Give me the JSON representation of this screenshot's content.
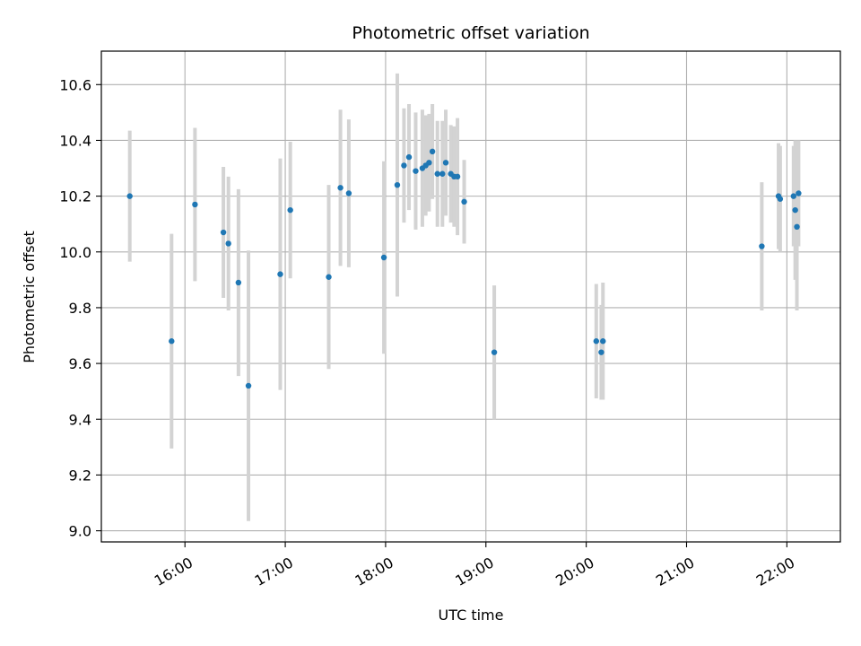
{
  "chart_data": {
    "type": "scatter",
    "title": "Photometric offset variation",
    "xlabel": "UTC time",
    "ylabel": "Photometric offset",
    "x_type": "time",
    "xlim": [
      "15:10",
      "22:32"
    ],
    "ylim": [
      8.96,
      10.72
    ],
    "x_ticks": [
      "16:00",
      "17:00",
      "18:00",
      "19:00",
      "20:00",
      "21:00",
      "22:00"
    ],
    "y_ticks": [
      "9.0",
      "9.2",
      "9.4",
      "9.6",
      "9.8",
      "10.0",
      "10.2",
      "10.4",
      "10.6"
    ],
    "grid": true,
    "legend": "none",
    "colors": {
      "points": "#1f77b4",
      "error_bars": "#d3d3d3",
      "grid": "#b0b0b0",
      "axes": "#000000"
    },
    "series": [
      {
        "points": [
          {
            "x": "15:27",
            "y": 10.2,
            "err": 0.235
          },
          {
            "x": "15:52",
            "y": 9.68,
            "err": 0.385
          },
          {
            "x": "16:06",
            "y": 10.17,
            "err": 0.275
          },
          {
            "x": "16:23",
            "y": 10.07,
            "err": 0.235
          },
          {
            "x": "16:26",
            "y": 10.03,
            "err": 0.24
          },
          {
            "x": "16:32",
            "y": 9.89,
            "err": 0.335
          },
          {
            "x": "16:38",
            "y": 9.52,
            "err": 0.485
          },
          {
            "x": "16:57",
            "y": 9.92,
            "err": 0.415
          },
          {
            "x": "17:03",
            "y": 10.15,
            "err": 0.245
          },
          {
            "x": "17:26",
            "y": 9.91,
            "err": 0.33
          },
          {
            "x": "17:33",
            "y": 10.23,
            "err": 0.28
          },
          {
            "x": "17:38",
            "y": 10.21,
            "err": 0.265
          },
          {
            "x": "17:59",
            "y": 9.98,
            "err": 0.345
          },
          {
            "x": "18:07",
            "y": 10.24,
            "err": 0.4
          },
          {
            "x": "18:11",
            "y": 10.31,
            "err": 0.205
          },
          {
            "x": "18:14",
            "y": 10.34,
            "err": 0.19
          },
          {
            "x": "18:18",
            "y": 10.29,
            "err": 0.21
          },
          {
            "x": "18:22",
            "y": 10.3,
            "err": 0.21
          },
          {
            "x": "18:24",
            "y": 10.31,
            "err": 0.18
          },
          {
            "x": "18:26",
            "y": 10.32,
            "err": 0.175
          },
          {
            "x": "18:28",
            "y": 10.36,
            "err": 0.17
          },
          {
            "x": "18:31",
            "y": 10.28,
            "err": 0.19
          },
          {
            "x": "18:34",
            "y": 10.28,
            "err": 0.19
          },
          {
            "x": "18:36",
            "y": 10.32,
            "err": 0.19
          },
          {
            "x": "18:39",
            "y": 10.28,
            "err": 0.175
          },
          {
            "x": "18:41",
            "y": 10.27,
            "err": 0.18
          },
          {
            "x": "18:43",
            "y": 10.27,
            "err": 0.21
          },
          {
            "x": "18:47",
            "y": 10.18,
            "err": 0.15
          },
          {
            "x": "19:05",
            "y": 9.64,
            "err": 0.24
          },
          {
            "x": "20:06",
            "y": 9.68,
            "err": 0.205
          },
          {
            "x": "20:09",
            "y": 9.64,
            "err": 0.17
          },
          {
            "x": "20:10",
            "y": 9.68,
            "err": 0.21
          },
          {
            "x": "21:45",
            "y": 10.02,
            "err": 0.23
          },
          {
            "x": "21:55",
            "y": 10.2,
            "err": 0.19
          },
          {
            "x": "21:56",
            "y": 10.19,
            "err": 0.19
          },
          {
            "x": "22:04",
            "y": 10.2,
            "err": 0.18
          },
          {
            "x": "22:05",
            "y": 10.15,
            "err": 0.25
          },
          {
            "x": "22:06",
            "y": 10.09,
            "err": 0.3
          },
          {
            "x": "22:07",
            "y": 10.21,
            "err": 0.19
          }
        ]
      }
    ]
  }
}
